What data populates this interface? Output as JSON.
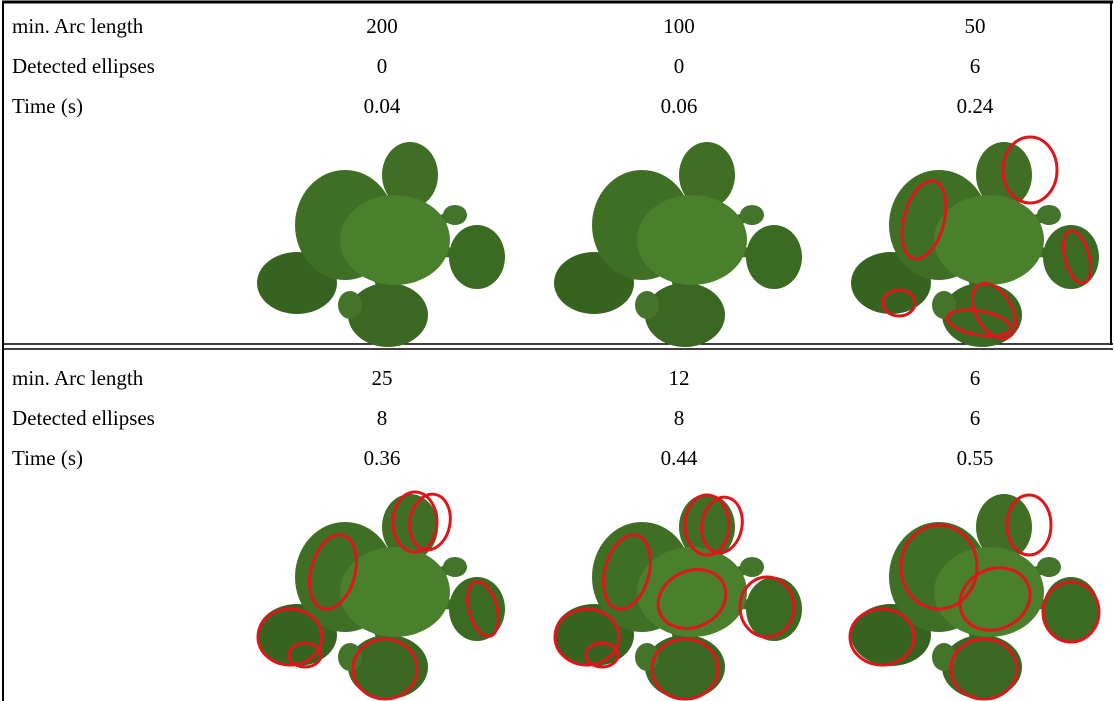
{
  "blocks": [
    {
      "rows": [
        {
          "label": "min. Arc length",
          "values": [
            200,
            100,
            50
          ]
        },
        {
          "label": "Detected ellipses",
          "values": [
            0,
            0,
            6
          ]
        },
        {
          "label": "Time (s)",
          "values": [
            0.04,
            0.06,
            0.24
          ]
        }
      ]
    },
    {
      "rows": [
        {
          "label": "min. Arc length",
          "values": [
            25,
            12,
            6
          ]
        },
        {
          "label": "Detected ellipses",
          "values": [
            8,
            8,
            6
          ]
        },
        {
          "label": "Time (s)",
          "values": [
            0.36,
            0.44,
            0.55
          ]
        }
      ]
    }
  ]
}
